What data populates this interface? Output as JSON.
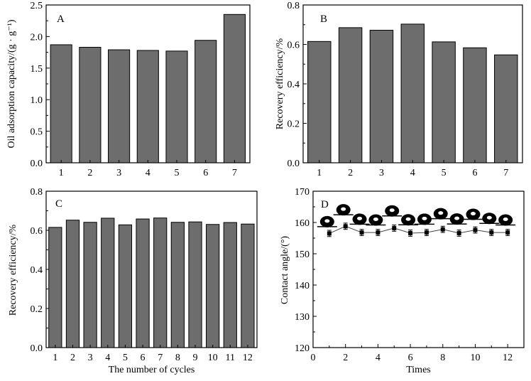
{
  "chart_data": [
    {
      "panel": "A",
      "type": "bar",
      "categories": [
        "1",
        "2",
        "3",
        "4",
        "5",
        "6",
        "7"
      ],
      "values": [
        1.87,
        1.83,
        1.79,
        1.78,
        1.77,
        1.94,
        2.35
      ],
      "title": "",
      "xlabel": "",
      "ylabel": "Oil adsorption capacity/(g · g⁻¹)",
      "ylim": [
        0,
        2.5
      ],
      "yticks": [
        "0.0",
        "0.5",
        "1.0",
        "1.5",
        "2.0",
        "2.5"
      ],
      "bar_color": "#6d6d6d"
    },
    {
      "panel": "B",
      "type": "bar",
      "categories": [
        "1",
        "2",
        "3",
        "4",
        "5",
        "6",
        "7"
      ],
      "values": [
        0.615,
        0.685,
        0.672,
        0.703,
        0.613,
        0.583,
        0.547
      ],
      "title": "",
      "xlabel": "",
      "ylabel": "Recovery efficiency/%",
      "ylim": [
        0,
        0.8
      ],
      "yticks": [
        "0.0",
        "0.2",
        "0.4",
        "0.6",
        "0.8"
      ],
      "bar_color": "#6d6d6d"
    },
    {
      "panel": "C",
      "type": "bar",
      "categories": [
        "1",
        "2",
        "3",
        "4",
        "5",
        "6",
        "7",
        "8",
        "9",
        "10",
        "11",
        "12"
      ],
      "values": [
        0.615,
        0.652,
        0.641,
        0.662,
        0.628,
        0.658,
        0.663,
        0.641,
        0.643,
        0.63,
        0.64,
        0.632
      ],
      "title": "",
      "xlabel": "The number of cycles",
      "ylabel": "Recovery efficiency/%",
      "ylim": [
        0,
        0.8
      ],
      "yticks": [
        "0.0",
        "0.2",
        "0.4",
        "0.6",
        "0.8"
      ],
      "bar_color": "#6d6d6d"
    },
    {
      "panel": "D",
      "type": "line",
      "x": [
        1,
        2,
        3,
        4,
        5,
        6,
        7,
        8,
        9,
        10,
        11,
        12
      ],
      "y": [
        156.5,
        158.8,
        156.8,
        156.8,
        158.2,
        156.6,
        156.8,
        157.8,
        156.6,
        157.6,
        156.8,
        156.8
      ],
      "error": [
        1.0,
        1.0,
        1.0,
        1.0,
        1.0,
        1.0,
        1.0,
        1.0,
        1.0,
        1.0,
        1.0,
        1.0
      ],
      "title": "",
      "xlabel": "Times",
      "ylabel": "Contact angle/(°)",
      "xlim": [
        0,
        13
      ],
      "ylim": [
        120,
        170
      ],
      "xticks": [
        "0",
        "2",
        "4",
        "6",
        "8",
        "10",
        "12"
      ],
      "yticks": [
        "120",
        "130",
        "140",
        "150",
        "160",
        "170"
      ],
      "marker": "square",
      "droplet_insets": 12
    }
  ]
}
